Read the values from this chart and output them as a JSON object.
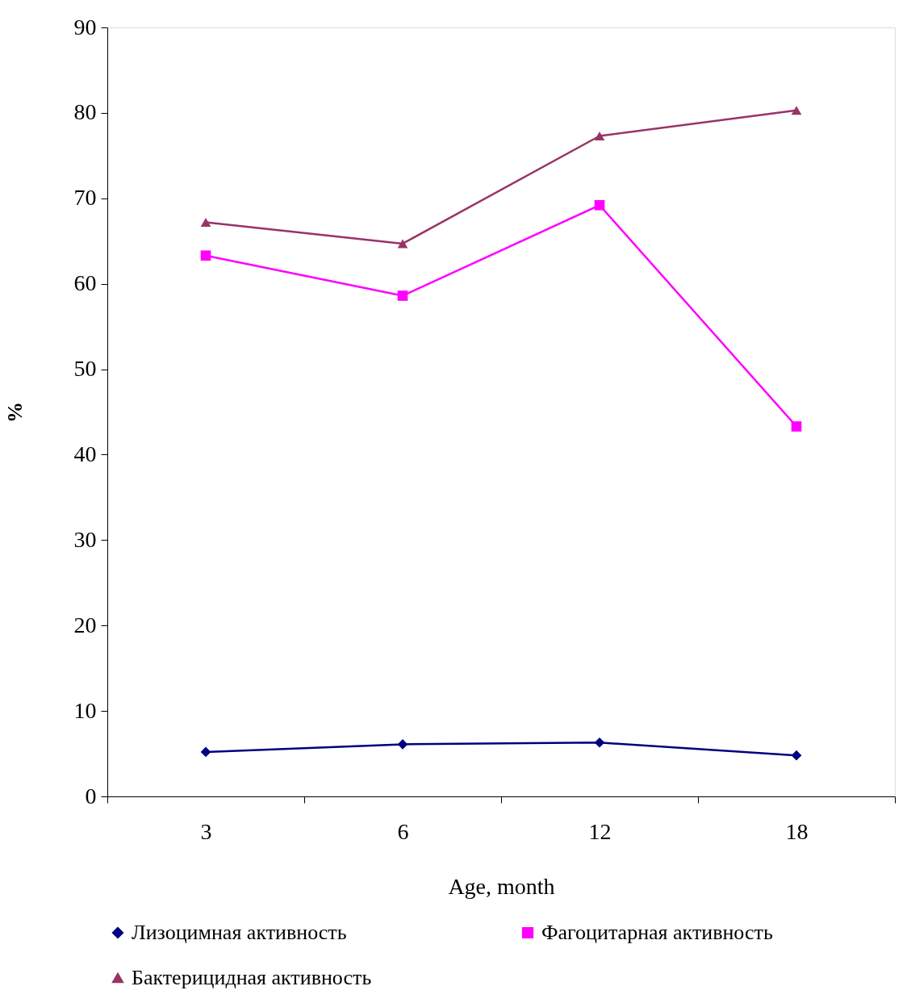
{
  "chart_data": {
    "type": "line",
    "xlabel": "Age, month",
    "ylabel": "%",
    "categories": [
      "3",
      "6",
      "12",
      "18"
    ],
    "series": [
      {
        "name": "Лизоцимная активность",
        "color": "#000080",
        "marker": "diamond",
        "values": [
          5.2,
          6.1,
          6.3,
          4.8
        ]
      },
      {
        "name": "Фагоцитарная активность",
        "color": "#ff00ff",
        "marker": "square",
        "values": [
          63.3,
          58.6,
          69.2,
          43.3
        ]
      },
      {
        "name": "Бактерицидная активность",
        "color": "#993366",
        "marker": "triangle",
        "values": [
          67.2,
          64.7,
          77.3,
          80.3
        ]
      }
    ],
    "ylim": [
      0,
      90
    ],
    "yticks": [
      0,
      10,
      20,
      30,
      40,
      50,
      60,
      70,
      80,
      90
    ],
    "grid": false,
    "legend": "bottom",
    "line_style": "solid"
  }
}
